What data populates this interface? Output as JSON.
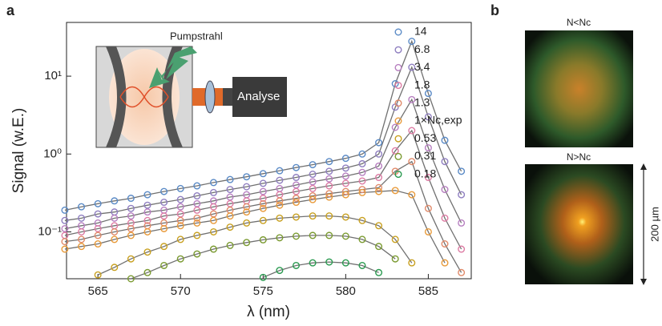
{
  "chart_data": {
    "type": "scatter",
    "xlabel": "λ (nm)",
    "ylabel": "Signal (w.E.)",
    "xlim": [
      563.1,
      587.6
    ],
    "ylim": [
      0.025,
      49
    ],
    "log_y": true,
    "xticks": [
      565,
      570,
      575,
      580,
      585
    ],
    "yticks": [
      {
        "value": 0.1,
        "label": "10⁻¹"
      },
      {
        "value": 1,
        "label": "10⁰"
      },
      {
        "value": 10,
        "label": "10¹"
      }
    ],
    "fit_line_color": "#707070",
    "legend": "right",
    "x": [
      563,
      564,
      565,
      566,
      567,
      568,
      569,
      570,
      571,
      572,
      573,
      574,
      575,
      576,
      577,
      578,
      579,
      580,
      581,
      582,
      583,
      584,
      585,
      586,
      587
    ],
    "series": [
      {
        "name": "14",
        "color": "#5a8ac6",
        "values": [
          0.19,
          0.21,
          0.23,
          0.25,
          0.27,
          0.3,
          0.33,
          0.36,
          0.39,
          0.43,
          0.47,
          0.51,
          0.56,
          0.61,
          0.67,
          0.73,
          0.8,
          0.88,
          1.0,
          1.4,
          8,
          28,
          6,
          1.5,
          0.6
        ]
      },
      {
        "name": "6.8",
        "color": "#8f7fc0",
        "values": [
          0.14,
          0.15,
          0.17,
          0.18,
          0.2,
          0.22,
          0.24,
          0.26,
          0.29,
          0.32,
          0.35,
          0.38,
          0.42,
          0.46,
          0.5,
          0.55,
          0.6,
          0.66,
          0.75,
          1.0,
          4,
          13,
          3,
          0.8,
          0.3
        ]
      },
      {
        "name": "3.4",
        "color": "#b77fc0",
        "values": [
          0.11,
          0.12,
          0.13,
          0.15,
          0.16,
          0.18,
          0.19,
          0.21,
          0.23,
          0.25,
          0.28,
          0.3,
          0.33,
          0.36,
          0.4,
          0.44,
          0.48,
          0.52,
          0.58,
          0.7,
          2.2,
          5,
          1.2,
          0.35,
          0.13
        ]
      },
      {
        "name": "1.8",
        "color": "#dd7ca4",
        "values": [
          0.09,
          0.1,
          0.11,
          0.12,
          0.13,
          0.14,
          0.16,
          0.17,
          0.19,
          0.21,
          0.23,
          0.25,
          0.27,
          0.3,
          0.33,
          0.36,
          0.39,
          0.42,
          0.45,
          0.5,
          1.1,
          2,
          0.5,
          0.15,
          0.06
        ]
      },
      {
        "name": "1.3",
        "color": "#e08a6a",
        "values": [
          0.075,
          0.08,
          0.09,
          0.1,
          0.11,
          0.12,
          0.13,
          0.14,
          0.15,
          0.17,
          0.19,
          0.21,
          0.23,
          0.25,
          0.27,
          0.29,
          0.31,
          0.33,
          0.35,
          0.37,
          0.6,
          0.8,
          0.2,
          0.07,
          0.03
        ]
      },
      {
        "name": "1×Nc,exp",
        "color": "#e89a3a",
        "values": [
          0.06,
          0.065,
          0.07,
          0.08,
          0.09,
          0.1,
          0.11,
          0.12,
          0.13,
          0.14,
          0.16,
          0.18,
          0.2,
          0.22,
          0.24,
          0.26,
          0.28,
          0.3,
          0.32,
          0.33,
          0.34,
          0.3,
          0.1,
          0.04,
          null
        ]
      },
      {
        "name": "0.53",
        "color": "#c8a020",
        "values": [
          null,
          null,
          0.028,
          0.035,
          0.045,
          0.055,
          0.065,
          0.08,
          0.09,
          0.1,
          0.115,
          0.13,
          0.14,
          0.15,
          0.155,
          0.16,
          0.16,
          0.155,
          0.14,
          0.12,
          0.08,
          0.04,
          null,
          null,
          null
        ]
      },
      {
        "name": "0.31",
        "color": "#7a9a30",
        "values": [
          null,
          null,
          null,
          null,
          0.025,
          0.03,
          0.037,
          0.045,
          0.052,
          0.06,
          0.067,
          0.073,
          0.079,
          0.084,
          0.088,
          0.09,
          0.09,
          0.088,
          0.08,
          0.065,
          0.045,
          null,
          null,
          null,
          null
        ]
      },
      {
        "name": "0.18",
        "color": "#2a9a50",
        "values": [
          null,
          null,
          null,
          null,
          null,
          null,
          null,
          null,
          null,
          null,
          null,
          null,
          0.026,
          0.032,
          0.037,
          0.04,
          0.041,
          0.04,
          0.037,
          0.03,
          null,
          null,
          null,
          null,
          null
        ]
      }
    ]
  },
  "panel_labels": [
    "a",
    "b"
  ],
  "inset": {
    "pump": "Pumpstrahl",
    "analyser": "Analyse"
  },
  "panel_b": {
    "top_label": "N<Nc",
    "bottom_label": "N>Nc",
    "scale": "200 µm"
  }
}
